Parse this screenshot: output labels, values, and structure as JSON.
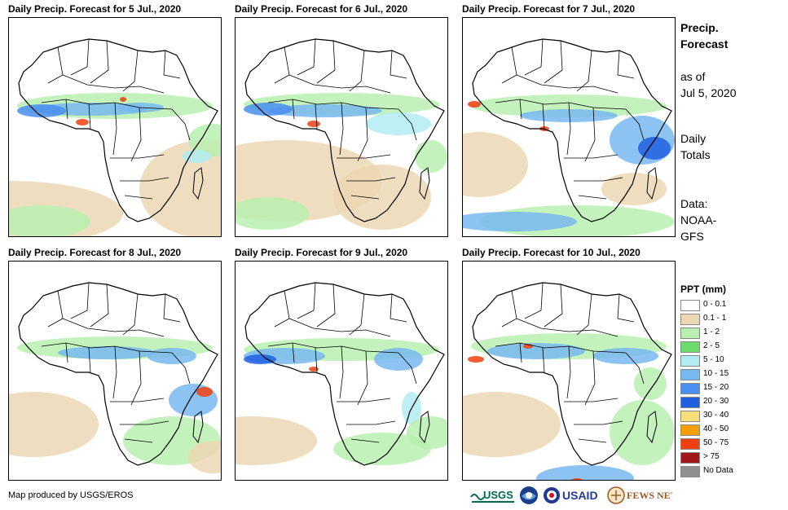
{
  "panels": [
    {
      "title": "Daily Precip. Forecast for 5 Jul., 2020"
    },
    {
      "title": "Daily Precip. Forecast for 6 Jul., 2020"
    },
    {
      "title": "Daily Precip. Forecast for 7 Jul., 2020"
    },
    {
      "title": "Daily Precip. Forecast for 8 Jul., 2020"
    },
    {
      "title": "Daily Precip. Forecast for 9 Jul., 2020"
    },
    {
      "title": "Daily Precip. Forecast for 10 Jul., 2020"
    }
  ],
  "side": {
    "title_line1": "Precip.",
    "title_line2": "Forecast",
    "asof_line1": "as of",
    "asof_line2": "Jul 5, 2020",
    "totals_line1": "Daily",
    "totals_line2": "Totals",
    "data_line1": "Data:",
    "data_line2": "NOAA-",
    "data_line3": "GFS"
  },
  "legend": {
    "title": "PPT (mm)",
    "items": [
      {
        "label": "0 - 0.1",
        "color": "#ffffff"
      },
      {
        "label": "0.1 - 1",
        "color": "#ecd7b4"
      },
      {
        "label": "1 - 2",
        "color": "#b8f0b0"
      },
      {
        "label": "2 - 5",
        "color": "#6ddc6a"
      },
      {
        "label": "5 - 10",
        "color": "#b2ecf2"
      },
      {
        "label": "10 - 15",
        "color": "#78b8f0"
      },
      {
        "label": "15 - 20",
        "color": "#4a8ef0"
      },
      {
        "label": "20 - 30",
        "color": "#1f5fe0"
      },
      {
        "label": "30 - 40",
        "color": "#f7e07a"
      },
      {
        "label": "40 - 50",
        "color": "#f5a000"
      },
      {
        "label": "50 - 75",
        "color": "#f04010"
      },
      {
        "label": "> 75",
        "color": "#a01818"
      },
      {
        "label": "No Data",
        "color": "#909090"
      }
    ]
  },
  "footer": {
    "credit": "Map produced by USGS/EROS",
    "logo_usgs": "USGS",
    "logo_noaa": "NOAA",
    "logo_usaid": "USAID",
    "logo_fews": "FEWS NET"
  },
  "colors": {
    "white": "#ffffff",
    "tan": "#ecd7b4",
    "lightgreen": "#b8f0b0",
    "green": "#6ddc6a",
    "cyan": "#b2ecf2",
    "lightblue": "#78b8f0",
    "blue": "#4a8ef0",
    "darkblue": "#1f5fe0",
    "orange": "#f5a000",
    "red": "#f04010"
  }
}
